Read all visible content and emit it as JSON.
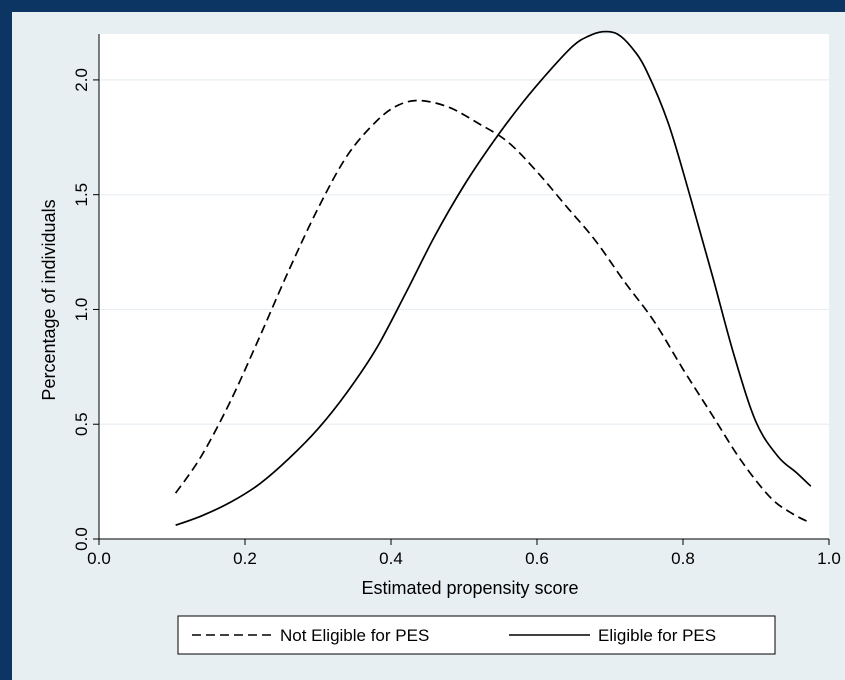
{
  "colors": {
    "outer_frame": "#0d3563",
    "background": "#e8eff2",
    "plot_area": "#ffffff",
    "grid": "#e8eff2",
    "line": "#000000"
  },
  "chart_data": {
    "type": "line",
    "title": "",
    "xlabel": "Estimated propensity score",
    "ylabel": "Percentage of individuals",
    "xlim": [
      0.0,
      1.0
    ],
    "ylim": [
      0.0,
      2.2
    ],
    "x_ticks": [
      0.0,
      0.2,
      0.4,
      0.6,
      0.8,
      1.0
    ],
    "x_tick_labels": [
      "0.0",
      "0.2",
      "0.4",
      "0.6",
      "0.8",
      "1.0"
    ],
    "y_ticks": [
      0.0,
      0.5,
      1.0,
      1.5,
      2.0
    ],
    "y_tick_labels": [
      "0.0",
      "0.5",
      "1.0",
      "1.5",
      "2.0"
    ],
    "grid": "horizontal",
    "legend_position": "bottom",
    "series": [
      {
        "name": "Not Eligible for PES",
        "style": "dashed",
        "x": [
          0.105,
          0.14,
          0.18,
          0.22,
          0.26,
          0.3,
          0.34,
          0.38,
          0.41,
          0.44,
          0.48,
          0.52,
          0.56,
          0.6,
          0.64,
          0.68,
          0.72,
          0.76,
          0.8,
          0.84,
          0.88,
          0.92,
          0.95,
          0.975
        ],
        "values": [
          0.2,
          0.36,
          0.6,
          0.88,
          1.17,
          1.44,
          1.67,
          1.82,
          1.89,
          1.91,
          1.88,
          1.81,
          1.73,
          1.6,
          1.45,
          1.3,
          1.12,
          0.95,
          0.74,
          0.54,
          0.34,
          0.18,
          0.11,
          0.07
        ]
      },
      {
        "name": "Eligible for PES",
        "style": "solid",
        "x": [
          0.105,
          0.14,
          0.18,
          0.22,
          0.26,
          0.3,
          0.34,
          0.38,
          0.42,
          0.46,
          0.5,
          0.54,
          0.58,
          0.62,
          0.65,
          0.67,
          0.69,
          0.71,
          0.73,
          0.75,
          0.78,
          0.81,
          0.84,
          0.87,
          0.9,
          0.93,
          0.955,
          0.975
        ],
        "values": [
          0.06,
          0.1,
          0.16,
          0.24,
          0.35,
          0.48,
          0.64,
          0.83,
          1.07,
          1.32,
          1.54,
          1.73,
          1.9,
          2.05,
          2.15,
          2.19,
          2.21,
          2.2,
          2.14,
          2.04,
          1.81,
          1.49,
          1.15,
          0.8,
          0.51,
          0.36,
          0.29,
          0.23
        ]
      }
    ]
  }
}
